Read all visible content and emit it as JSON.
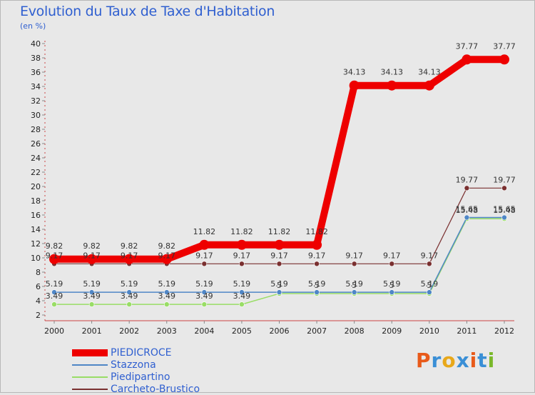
{
  "title": "Evolution du Taux de Taxe d'Habitation",
  "unit": "(en %)",
  "logo": {
    "letters": [
      "P",
      "r",
      "o",
      "x",
      "i",
      "t",
      "i"
    ],
    "colors": [
      "#e85a1a",
      "#3a8fd6",
      "#e8a81a",
      "#3a8fd6",
      "#e85a1a",
      "#3a8fd6",
      "#7ab82a"
    ]
  },
  "chart_data": {
    "type": "line",
    "title": "Evolution du Taux de Taxe d'Habitation",
    "xlabel": "",
    "ylabel": "(en %)",
    "ylim": [
      2,
      40
    ],
    "yticks": [
      2,
      4,
      6,
      8,
      10,
      12,
      14,
      16,
      18,
      20,
      22,
      24,
      26,
      28,
      30,
      32,
      34,
      36,
      38,
      40
    ],
    "categories": [
      "2000",
      "2001",
      "2002",
      "2003",
      "2004",
      "2005",
      "2006",
      "2007",
      "2008",
      "2009",
      "2010",
      "2011",
      "2012"
    ],
    "series": [
      {
        "name": "PIEDICROCE",
        "color": "#ee0000",
        "width": 10,
        "values": [
          9.82,
          9.82,
          9.82,
          9.82,
          11.82,
          11.82,
          11.82,
          11.82,
          34.13,
          34.13,
          34.13,
          37.77,
          37.77
        ],
        "labels": [
          "9.82",
          "9.82",
          "9.82",
          "9.82",
          "11.82",
          "11.82",
          "11.82",
          "11.82",
          "34.13",
          "34.13",
          "34.13",
          "37.77",
          "37.77"
        ]
      },
      {
        "name": "Stazzona",
        "color": "#4f86c6",
        "width": 1.5,
        "values": [
          5.19,
          5.19,
          5.19,
          5.19,
          5.19,
          5.19,
          5.19,
          5.19,
          5.19,
          5.19,
          5.19,
          15.65,
          15.65
        ],
        "labels": [
          "5.19",
          "5.19",
          "5.19",
          "5.19",
          "5.19",
          "5.19",
          "5.19",
          "5.19",
          "5.19",
          "5.19",
          "5.19",
          "15.65",
          "15.65"
        ]
      },
      {
        "name": "Piedipartino",
        "color": "#99dd66",
        "width": 1.5,
        "values": [
          3.49,
          3.49,
          3.49,
          3.49,
          3.49,
          3.49,
          5.0,
          5.0,
          5.0,
          5.0,
          5.0,
          15.48,
          15.48
        ],
        "labels": [
          "3.49",
          "3.49",
          "3.49",
          "3.49",
          "3.49",
          "3.49",
          "5",
          "5",
          "5",
          "5",
          "5",
          "15.48",
          "15.48"
        ]
      },
      {
        "name": "Carcheto-Brustico",
        "color": "#7a3030",
        "width": 1.2,
        "values": [
          9.17,
          9.17,
          9.17,
          9.17,
          9.17,
          9.17,
          9.17,
          9.17,
          9.17,
          9.17,
          9.17,
          19.77,
          19.77
        ],
        "labels": [
          "9.17",
          "9.17",
          "9.17",
          "9.17",
          "9.17",
          "9.17",
          "9.17",
          "9.17",
          "9.17",
          "9.17",
          "9.17",
          "19.77",
          "19.77"
        ]
      }
    ],
    "grid": false,
    "legend": "bottom-left"
  }
}
